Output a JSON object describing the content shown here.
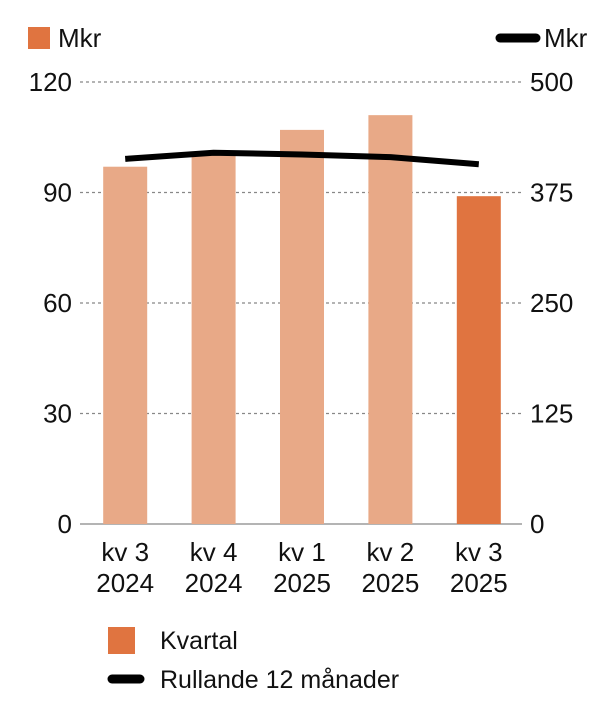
{
  "chart_data": {
    "type": "bar",
    "categories": [
      [
        "kv 3",
        "2024"
      ],
      [
        "kv 4",
        "2024"
      ],
      [
        "kv 1",
        "2025"
      ],
      [
        "kv 2",
        "2025"
      ],
      [
        "kv 3",
        "2025"
      ]
    ],
    "series": [
      {
        "name": "Kvartal",
        "type": "bar",
        "axis": "left",
        "values": [
          97,
          101,
          107,
          111,
          89
        ]
      },
      {
        "name": "Rullande 12 månader",
        "type": "line",
        "axis": "right",
        "values": [
          413,
          420,
          418,
          415,
          407
        ]
      }
    ],
    "left_axis": {
      "unit": "Mkr",
      "ylim": [
        0,
        120
      ],
      "ticks": [
        0,
        30,
        60,
        90,
        120
      ]
    },
    "right_axis": {
      "unit": "Mkr",
      "ylim": [
        0,
        500
      ],
      "ticks": [
        0,
        125,
        250,
        375,
        500
      ]
    },
    "grid": true,
    "legend": "bottom-left",
    "colors": {
      "bar": "#e8a987",
      "bar_highlight": "#e07440",
      "line": "#000000",
      "grid": "#888888"
    }
  }
}
